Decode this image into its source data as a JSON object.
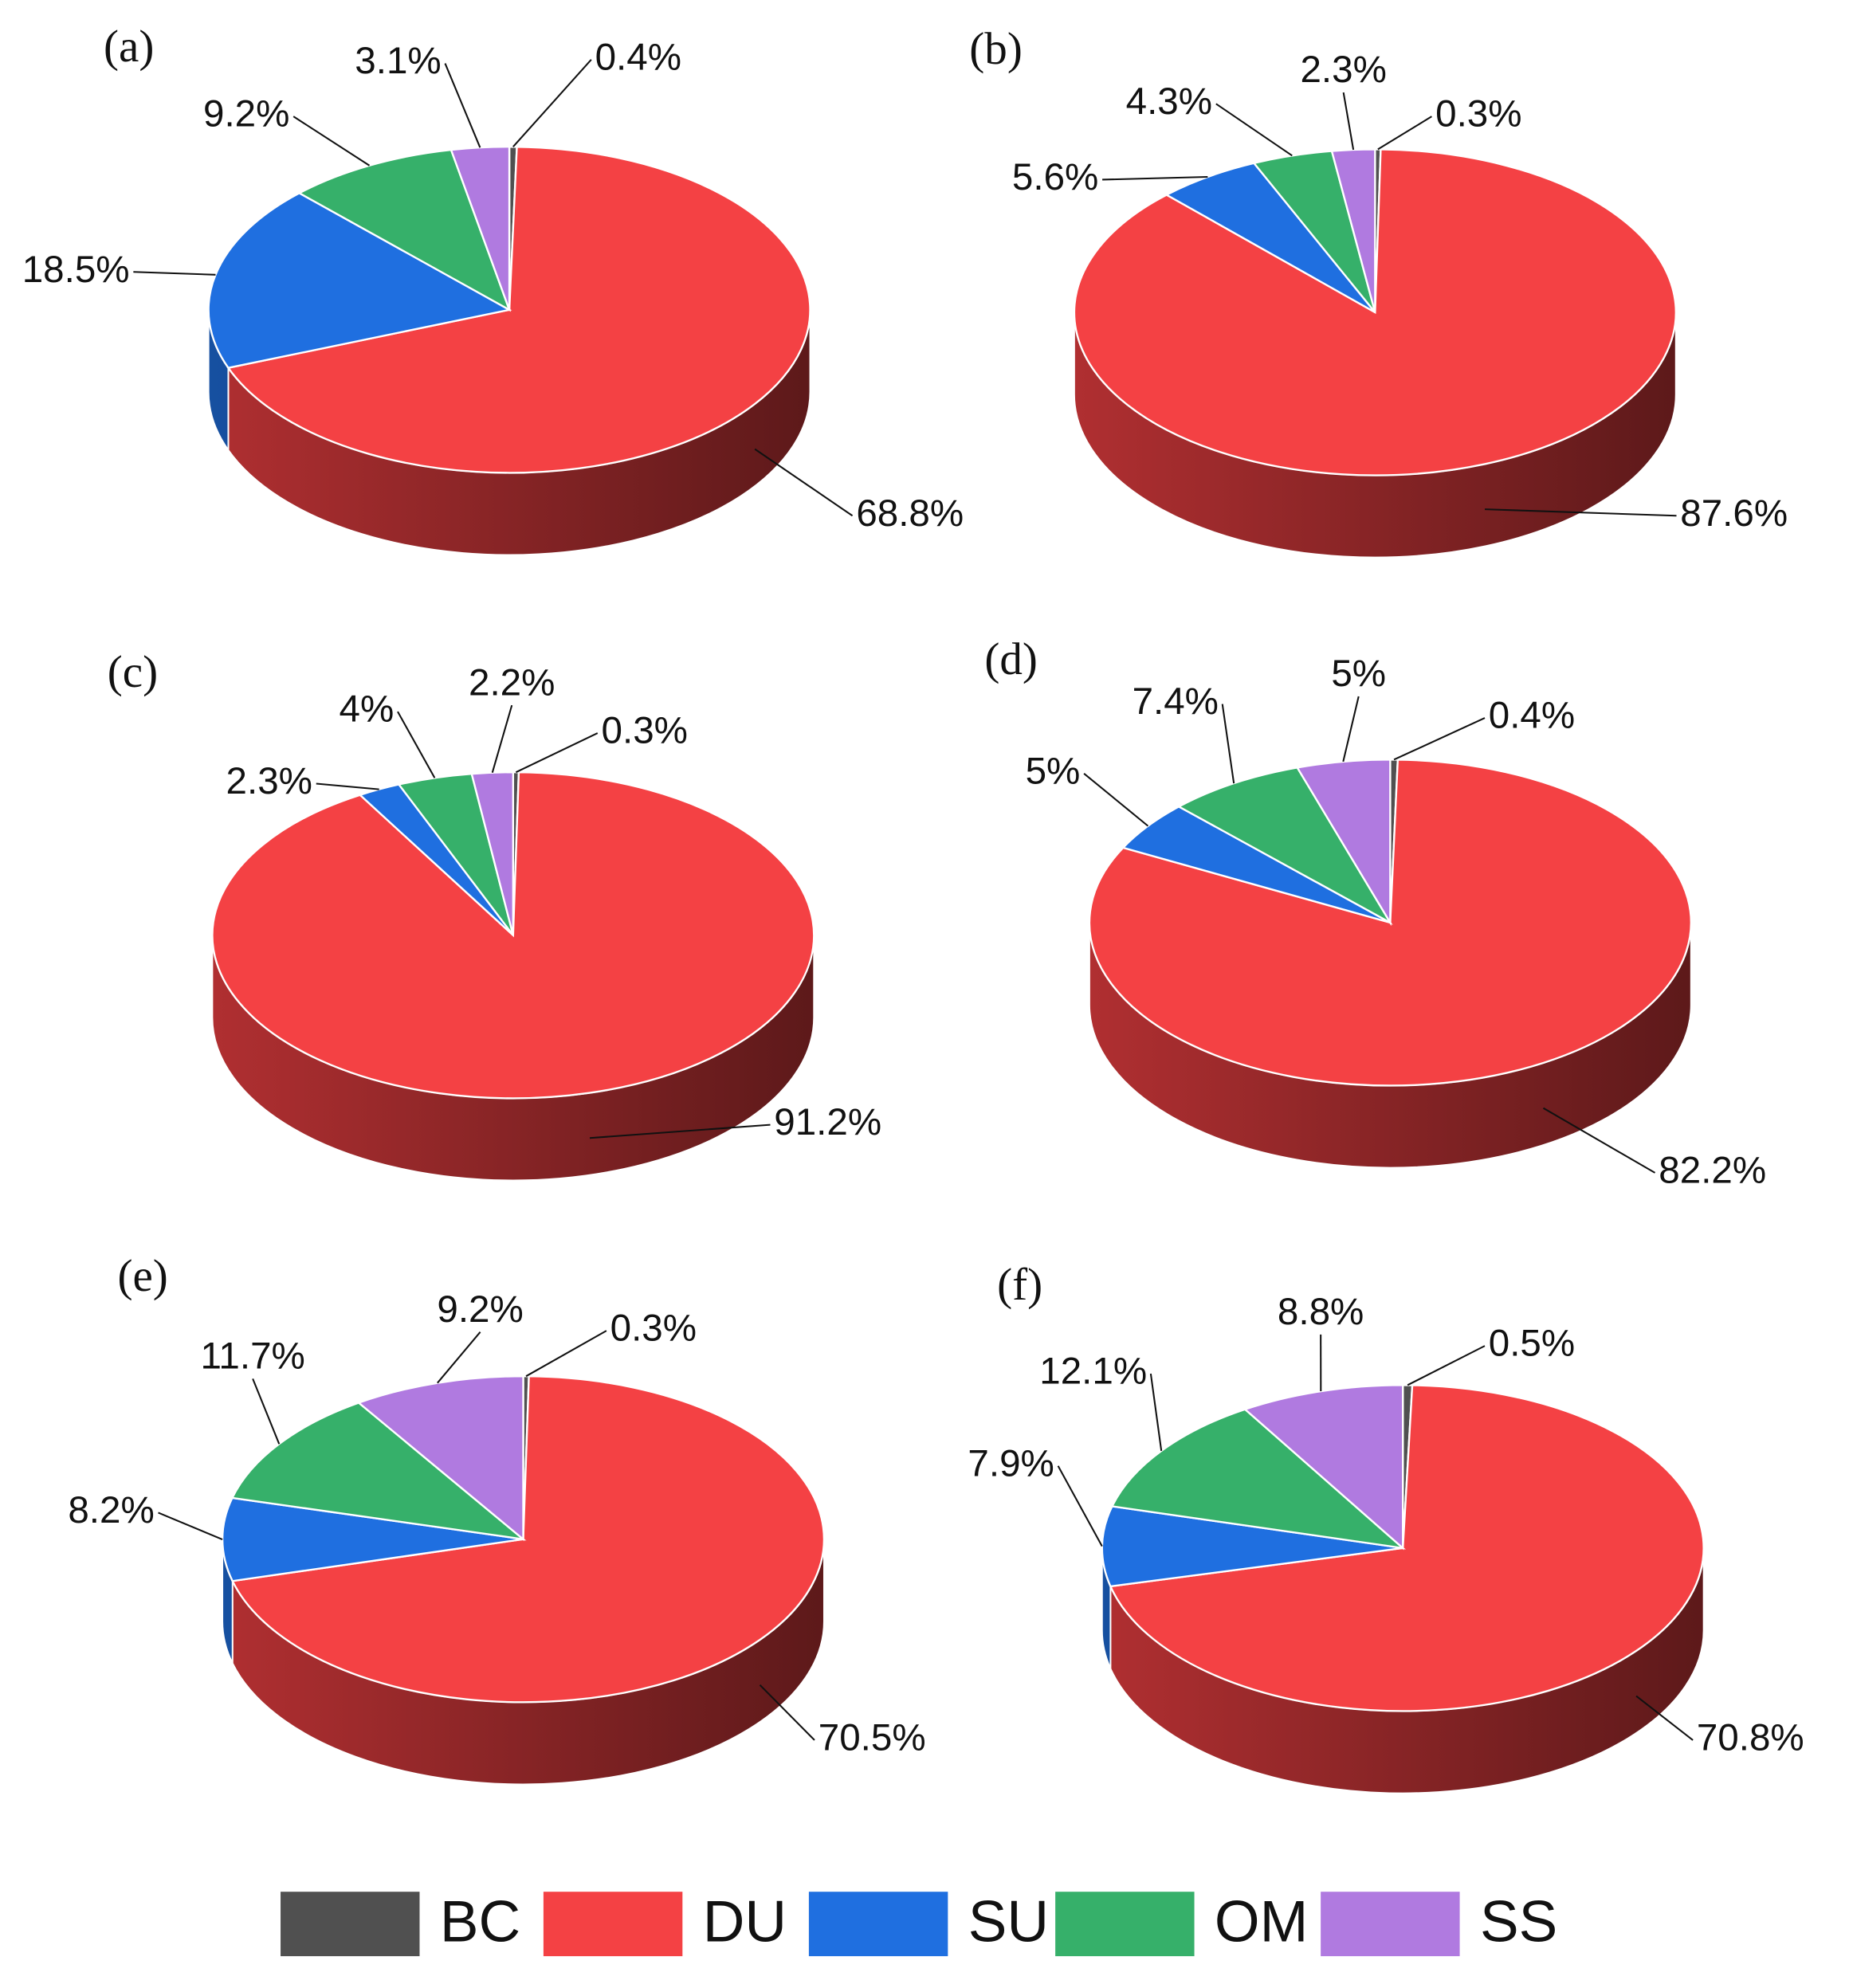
{
  "chart_data": [
    {
      "type": "pie",
      "title": "(a)",
      "values": [
        0.4,
        68.8,
        18.5,
        9.2,
        3.1
      ],
      "value_labels": [
        "0.4%",
        "68.8%",
        "18.5%",
        "9.2%",
        "3.1%"
      ]
    },
    {
      "type": "pie",
      "title": "(b)",
      "values": [
        0.3,
        87.6,
        5.6,
        4.3,
        2.3
      ],
      "value_labels": [
        "0.3%",
        "87.6%",
        "5.6%",
        "4.3%",
        "2.3%"
      ]
    },
    {
      "type": "pie",
      "title": "(c)",
      "values": [
        0.3,
        91.2,
        2.3,
        4,
        2.2
      ],
      "value_labels": [
        "0.3%",
        "91.2%",
        "2.3%",
        "4%",
        "2.2%"
      ]
    },
    {
      "type": "pie",
      "title": "(d)",
      "values": [
        0.4,
        82.2,
        5,
        7.4,
        5
      ],
      "value_labels": [
        "0.4%",
        "82.2%",
        "5%",
        "7.4%",
        "5%"
      ]
    },
    {
      "type": "pie",
      "title": "(e)",
      "values": [
        0.3,
        70.5,
        8.2,
        11.7,
        9.2
      ],
      "value_labels": [
        "0.3%",
        "70.5%",
        "8.2%",
        "11.7%",
        "9.2%"
      ]
    },
    {
      "type": "pie",
      "title": "(f)",
      "values": [
        0.5,
        70.8,
        7.9,
        12.1,
        8.8
      ],
      "value_labels": [
        "0.5%",
        "70.8%",
        "7.9%",
        "12.1%",
        "8.8%"
      ]
    }
  ],
  "legend": {
    "categories": [
      "BC",
      "DU",
      "SU",
      "OM",
      "SS"
    ],
    "colors": [
      "#505050",
      "#f44144",
      "#1f6fe0",
      "#36b06a",
      "#b07ae0"
    ]
  }
}
